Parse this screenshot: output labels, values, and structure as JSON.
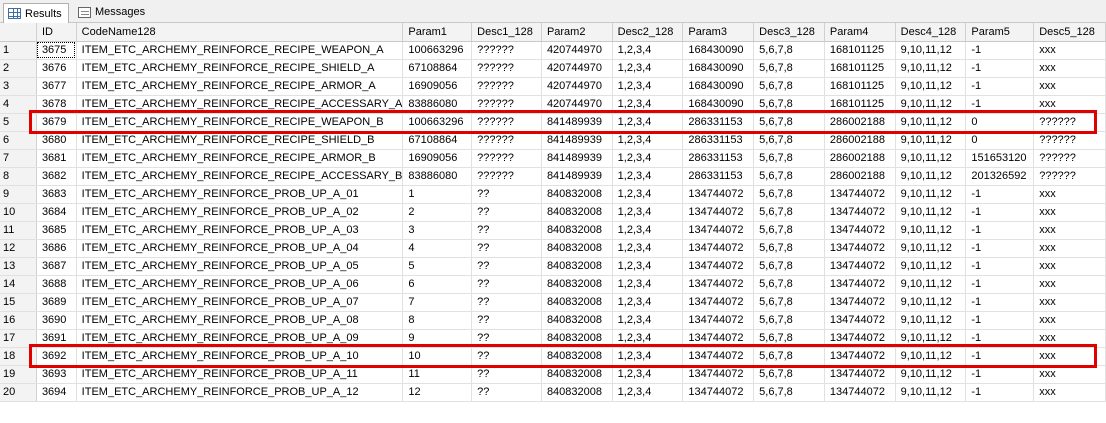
{
  "tabs": [
    {
      "label": "Results",
      "icon": "grid-icon",
      "active": true
    },
    {
      "label": "Messages",
      "icon": "messages-icon",
      "active": false
    }
  ],
  "columns": [
    "ID",
    "CodeName128",
    "Param1",
    "Desc1_128",
    "Param2",
    "Desc2_128",
    "Param3",
    "Desc3_128",
    "Param4",
    "Desc4_128",
    "Param5",
    "Desc5_128"
  ],
  "rows": [
    {
      "n": "1",
      "cells": [
        "3675",
        "ITEM_ETC_ARCHEMY_REINFORCE_RECIPE_WEAPON_A",
        "100663296",
        "??????",
        "420744970",
        "1,2,3,4",
        "168430090",
        "5,6,7,8",
        "168101125",
        "9,10,11,12",
        "-1",
        "xxx"
      ]
    },
    {
      "n": "2",
      "cells": [
        "3676",
        "ITEM_ETC_ARCHEMY_REINFORCE_RECIPE_SHIELD_A",
        "67108864",
        "??????",
        "420744970",
        "1,2,3,4",
        "168430090",
        "5,6,7,8",
        "168101125",
        "9,10,11,12",
        "-1",
        "xxx"
      ]
    },
    {
      "n": "3",
      "cells": [
        "3677",
        "ITEM_ETC_ARCHEMY_REINFORCE_RECIPE_ARMOR_A",
        "16909056",
        "??????",
        "420744970",
        "1,2,3,4",
        "168430090",
        "5,6,7,8",
        "168101125",
        "9,10,11,12",
        "-1",
        "xxx"
      ]
    },
    {
      "n": "4",
      "cells": [
        "3678",
        "ITEM_ETC_ARCHEMY_REINFORCE_RECIPE_ACCESSARY_A",
        "83886080",
        "??????",
        "420744970",
        "1,2,3,4",
        "168430090",
        "5,6,7,8",
        "168101125",
        "9,10,11,12",
        "-1",
        "xxx"
      ]
    },
    {
      "n": "5",
      "cells": [
        "3679",
        "ITEM_ETC_ARCHEMY_REINFORCE_RECIPE_WEAPON_B",
        "100663296",
        "??????",
        "841489939",
        "1,2,3,4",
        "286331153",
        "5,6,7,8",
        "286002188",
        "9,10,11,12",
        "0",
        "??????"
      ]
    },
    {
      "n": "6",
      "cells": [
        "3680",
        "ITEM_ETC_ARCHEMY_REINFORCE_RECIPE_SHIELD_B",
        "67108864",
        "??????",
        "841489939",
        "1,2,3,4",
        "286331153",
        "5,6,7,8",
        "286002188",
        "9,10,11,12",
        "0",
        "??????"
      ]
    },
    {
      "n": "7",
      "cells": [
        "3681",
        "ITEM_ETC_ARCHEMY_REINFORCE_RECIPE_ARMOR_B",
        "16909056",
        "??????",
        "841489939",
        "1,2,3,4",
        "286331153",
        "5,6,7,8",
        "286002188",
        "9,10,11,12",
        "151653120",
        "??????"
      ]
    },
    {
      "n": "8",
      "cells": [
        "3682",
        "ITEM_ETC_ARCHEMY_REINFORCE_RECIPE_ACCESSARY_B",
        "83886080",
        "??????",
        "841489939",
        "1,2,3,4",
        "286331153",
        "5,6,7,8",
        "286002188",
        "9,10,11,12",
        "201326592",
        "??????"
      ]
    },
    {
      "n": "9",
      "cells": [
        "3683",
        "ITEM_ETC_ARCHEMY_REINFORCE_PROB_UP_A_01",
        "1",
        "??",
        "840832008",
        "1,2,3,4",
        "134744072",
        "5,6,7,8",
        "134744072",
        "9,10,11,12",
        "-1",
        "xxx"
      ]
    },
    {
      "n": "10",
      "cells": [
        "3684",
        "ITEM_ETC_ARCHEMY_REINFORCE_PROB_UP_A_02",
        "2",
        "??",
        "840832008",
        "1,2,3,4",
        "134744072",
        "5,6,7,8",
        "134744072",
        "9,10,11,12",
        "-1",
        "xxx"
      ]
    },
    {
      "n": "11",
      "cells": [
        "3685",
        "ITEM_ETC_ARCHEMY_REINFORCE_PROB_UP_A_03",
        "3",
        "??",
        "840832008",
        "1,2,3,4",
        "134744072",
        "5,6,7,8",
        "134744072",
        "9,10,11,12",
        "-1",
        "xxx"
      ]
    },
    {
      "n": "12",
      "cells": [
        "3686",
        "ITEM_ETC_ARCHEMY_REINFORCE_PROB_UP_A_04",
        "4",
        "??",
        "840832008",
        "1,2,3,4",
        "134744072",
        "5,6,7,8",
        "134744072",
        "9,10,11,12",
        "-1",
        "xxx"
      ]
    },
    {
      "n": "13",
      "cells": [
        "3687",
        "ITEM_ETC_ARCHEMY_REINFORCE_PROB_UP_A_05",
        "5",
        "??",
        "840832008",
        "1,2,3,4",
        "134744072",
        "5,6,7,8",
        "134744072",
        "9,10,11,12",
        "-1",
        "xxx"
      ]
    },
    {
      "n": "14",
      "cells": [
        "3688",
        "ITEM_ETC_ARCHEMY_REINFORCE_PROB_UP_A_06",
        "6",
        "??",
        "840832008",
        "1,2,3,4",
        "134744072",
        "5,6,7,8",
        "134744072",
        "9,10,11,12",
        "-1",
        "xxx"
      ]
    },
    {
      "n": "15",
      "cells": [
        "3689",
        "ITEM_ETC_ARCHEMY_REINFORCE_PROB_UP_A_07",
        "7",
        "??",
        "840832008",
        "1,2,3,4",
        "134744072",
        "5,6,7,8",
        "134744072",
        "9,10,11,12",
        "-1",
        "xxx"
      ]
    },
    {
      "n": "16",
      "cells": [
        "3690",
        "ITEM_ETC_ARCHEMY_REINFORCE_PROB_UP_A_08",
        "8",
        "??",
        "840832008",
        "1,2,3,4",
        "134744072",
        "5,6,7,8",
        "134744072",
        "9,10,11,12",
        "-1",
        "xxx"
      ]
    },
    {
      "n": "17",
      "cells": [
        "3691",
        "ITEM_ETC_ARCHEMY_REINFORCE_PROB_UP_A_09",
        "9",
        "??",
        "840832008",
        "1,2,3,4",
        "134744072",
        "5,6,7,8",
        "134744072",
        "9,10,11,12",
        "-1",
        "xxx"
      ]
    },
    {
      "n": "18",
      "cells": [
        "3692",
        "ITEM_ETC_ARCHEMY_REINFORCE_PROB_UP_A_10",
        "10",
        "??",
        "840832008",
        "1,2,3,4",
        "134744072",
        "5,6,7,8",
        "134744072",
        "9,10,11,12",
        "-1",
        "xxx"
      ]
    },
    {
      "n": "19",
      "cells": [
        "3693",
        "ITEM_ETC_ARCHEMY_REINFORCE_PROB_UP_A_11",
        "11",
        "??",
        "840832008",
        "1,2,3,4",
        "134744072",
        "5,6,7,8",
        "134744072",
        "9,10,11,12",
        "-1",
        "xxx"
      ]
    },
    {
      "n": "20",
      "cells": [
        "3694",
        "ITEM_ETC_ARCHEMY_REINFORCE_PROB_UP_A_12",
        "12",
        "??",
        "840832008",
        "1,2,3,4",
        "134744072",
        "5,6,7,8",
        "134744072",
        "9,10,11,12",
        "-1",
        "xxx"
      ]
    }
  ],
  "highlighted_rows": [
    "5",
    "18"
  ],
  "highlight_color": "#e00000"
}
